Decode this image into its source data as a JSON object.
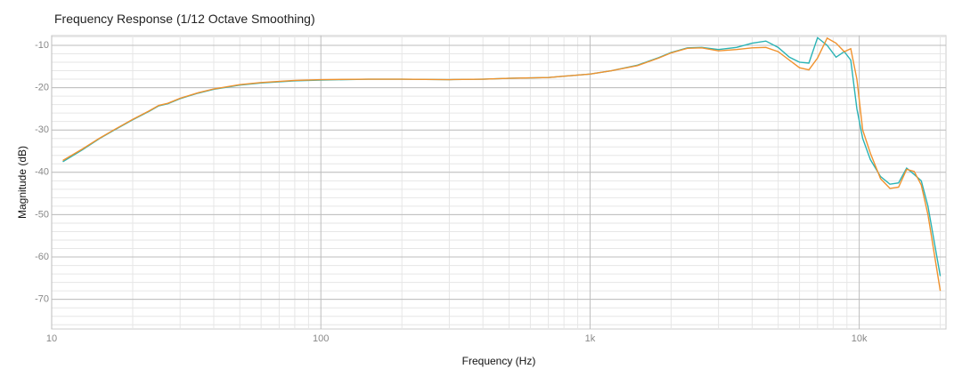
{
  "chart_data": {
    "type": "line",
    "title": "Frequency Response",
    "subtitle": "(1/12 Octave Smoothing)",
    "x_label": "Frequency (Hz)",
    "y_label": "Magnitude (dB)",
    "x": [
      11,
      13,
      15,
      17,
      20,
      23,
      25,
      27,
      30,
      35,
      40,
      50,
      60,
      80,
      100,
      150,
      200,
      300,
      400,
      500,
      700,
      1000,
      1200,
      1500,
      1800,
      2000,
      2300,
      2600,
      3000,
      3500,
      4000,
      4500,
      5000,
      5500,
      6000,
      6500,
      7000,
      7600,
      8200,
      8800,
      9300,
      9800,
      10300,
      11000,
      12000,
      13000,
      14000,
      15000,
      16000,
      17000,
      18000,
      20000
    ],
    "series": [
      {
        "color": "#2bb3b5",
        "values": [
          -37.5,
          -34.7,
          -32.1,
          -30.1,
          -27.6,
          -25.6,
          -24.3,
          -23.8,
          -22.6,
          -21.3,
          -20.4,
          -19.4,
          -18.9,
          -18.4,
          -18.2,
          -18.0,
          -18.0,
          -18.1,
          -18.0,
          -17.8,
          -17.6,
          -16.8,
          -16.0,
          -14.7,
          -12.9,
          -11.7,
          -10.6,
          -10.5,
          -11.0,
          -10.5,
          -9.5,
          -9.0,
          -10.5,
          -12.8,
          -14.0,
          -14.2,
          -8.2,
          -10.0,
          -12.8,
          -11.5,
          -13.5,
          -25.0,
          -32.0,
          -37.0,
          -41.0,
          -42.8,
          -42.5,
          -39.0,
          -40.5,
          -42.0,
          -48.0,
          -64.5
        ]
      },
      {
        "color": "#f0922e",
        "values": [
          -37.2,
          -34.5,
          -32.0,
          -30.0,
          -27.5,
          -25.5,
          -24.2,
          -23.7,
          -22.5,
          -21.2,
          -20.3,
          -19.3,
          -18.8,
          -18.3,
          -18.1,
          -18.0,
          -18.0,
          -18.1,
          -18.0,
          -17.8,
          -17.6,
          -16.8,
          -16.0,
          -14.8,
          -13.0,
          -11.8,
          -10.7,
          -10.6,
          -11.3,
          -11.0,
          -10.6,
          -10.5,
          -11.5,
          -13.5,
          -15.3,
          -15.8,
          -13.0,
          -8.3,
          -9.5,
          -11.5,
          -10.8,
          -18.0,
          -30.0,
          -35.5,
          -41.5,
          -43.8,
          -43.5,
          -39.3,
          -39.8,
          -43.0,
          -50.0,
          -68.0
        ]
      }
    ],
    "xlog": true,
    "xlim": [
      10,
      21000
    ],
    "xticks": [
      10,
      100,
      {
        "value": 1000,
        "label": "1k"
      },
      {
        "value": 10000,
        "label": "10k"
      }
    ],
    "ylim": [
      -77,
      -7.7
    ],
    "yticks": [
      -10,
      -20,
      -30,
      -40,
      -50,
      -60,
      -70
    ],
    "grid": true,
    "minor_grid": true
  }
}
